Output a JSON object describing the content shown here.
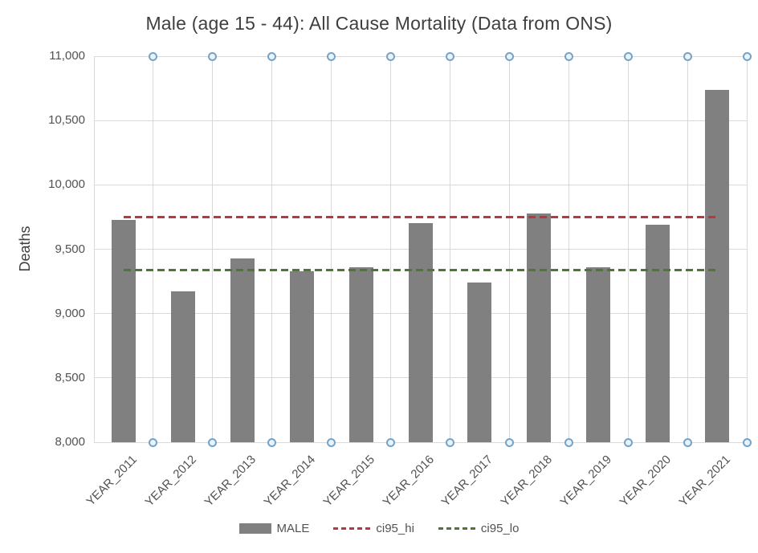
{
  "chart_data": {
    "type": "bar",
    "title": "Male (age 15 - 44):  All Cause Mortality (Data from ONS)",
    "xlabel": "",
    "ylabel": "Deaths",
    "ylim": [
      8000,
      11000
    ],
    "ytick_step": 500,
    "ytick_labels": [
      "11,000",
      "10,500",
      "10,000",
      "9,500",
      "9,000",
      "8,500",
      "8,000"
    ],
    "ytick_values": [
      11000,
      10500,
      10000,
      9500,
      9000,
      8500,
      8000
    ],
    "grid": true,
    "legend_position": "bottom",
    "categories": [
      "YEAR_2011",
      "YEAR_2012",
      "YEAR_2013",
      "YEAR_2014",
      "YEAR_2015",
      "YEAR_2016",
      "YEAR_2017",
      "YEAR_2018",
      "YEAR_2019",
      "YEAR_2020",
      "YEAR_2021"
    ],
    "series": [
      {
        "name": "MALE",
        "type": "bar",
        "color": "#808080",
        "values": [
          9725,
          9175,
          9430,
          9330,
          9360,
          9700,
          9240,
          9775,
          9360,
          9690,
          10740
        ]
      },
      {
        "name": "ci95_hi",
        "type": "dashed-reference-line",
        "color": "#b23b43",
        "value": 9750
      },
      {
        "name": "ci95_lo",
        "type": "dashed-reference-line",
        "color": "#4e7636",
        "value": 9335
      }
    ],
    "boundary_marker_color": "#74a3c9",
    "gridline_color": "#d9d9d9"
  }
}
